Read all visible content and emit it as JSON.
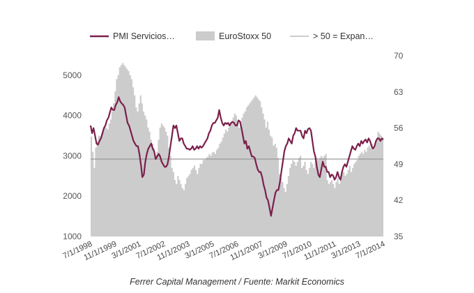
{
  "chart_data": {
    "type": "line",
    "title": "",
    "caption": "Ferrer Capital Management / Fuente: Markit Economics",
    "legend_position": "top",
    "legend": [
      {
        "name": "PMI Servicios…",
        "kind": "line",
        "color": "#7a1f4a"
      },
      {
        "name": "EuroStoxx 50",
        "kind": "area",
        "color": "#cccccc"
      },
      {
        "name": "> 50 = Expan…",
        "kind": "line",
        "color": "#bbbbbb"
      }
    ],
    "x_start": "7/1/1998",
    "x_end": "7/1/2014",
    "x_tick_labels": [
      "7/1/1998",
      "11/1/1999",
      "3/1/2001",
      "7/1/2002",
      "11/1/2003",
      "3/1/2005",
      "7/1/2006",
      "11/1/2007",
      "3/1/2009",
      "7/1/2010",
      "11/1/2011",
      "3/1/2013",
      "7/1/2014"
    ],
    "y_left": {
      "label": "",
      "min": 1000,
      "max": 5400,
      "ticks": [
        1000,
        2000,
        3000,
        4000,
        5000
      ]
    },
    "y_right": {
      "label": "",
      "min": 35,
      "max": 70,
      "ticks": [
        35,
        42,
        49,
        56,
        63,
        70
      ]
    },
    "grid": false,
    "reference_line": {
      "name": "> 50 = Expan…",
      "axis": "right",
      "value": 50
    },
    "series": [
      {
        "name": "EuroStoxx 50",
        "type": "area",
        "axis": "left",
        "color": "#cccccc",
        "frequency": "monthly",
        "values": [
          3480,
          3100,
          2700,
          3200,
          3350,
          3500,
          3480,
          3550,
          3600,
          3750,
          3700,
          3650,
          3800,
          3900,
          4100,
          4300,
          4600,
          4904,
          5000,
          5200,
          5250,
          5300,
          5250,
          5200,
          5150,
          5100,
          5000,
          4900,
          4700,
          4500,
          4200,
          4100,
          4300,
          4500,
          4300,
          4100,
          4000,
          3900,
          3700,
          3600,
          3400,
          3300,
          3200,
          3000,
          3100,
          3400,
          3700,
          3800,
          3750,
          3700,
          3600,
          3500,
          3200,
          3000,
          2700,
          2600,
          2400,
          2300,
          2500,
          2400,
          2300,
          2200,
          2150,
          2300,
          2450,
          2500,
          2550,
          2650,
          2700,
          2760,
          2650,
          2550,
          2700,
          2800,
          2800,
          2900,
          2900,
          2950,
          2980,
          3050,
          3000,
          3080,
          3100,
          3050,
          3150,
          3200,
          3300,
          3350,
          3450,
          3550,
          3650,
          3600,
          3700,
          3800,
          3850,
          3950,
          4050,
          4000,
          3800,
          3700,
          3850,
          3950,
          4050,
          4100,
          4200,
          4250,
          4300,
          4350,
          4400,
          4450,
          4500,
          4450,
          4400,
          4350,
          4200,
          4050,
          3900,
          3700,
          3850,
          3650,
          3500,
          3450,
          3250,
          3300,
          3200,
          2950,
          2550,
          2450,
          2350,
          2200,
          2100,
          2300,
          2500,
          2700,
          2800,
          2900,
          2850,
          2750,
          2850,
          2950,
          3000,
          2700,
          2750,
          2850,
          2650,
          2550,
          2700,
          2850,
          2800,
          2700,
          2850,
          2950,
          2900,
          2950,
          3000,
          2950,
          3000,
          3050,
          2400,
          2300,
          2350,
          2400,
          2300,
          2200,
          2350,
          2450,
          2300,
          2500,
          2650,
          2600,
          2500,
          2550,
          2650,
          2750,
          2600,
          2700,
          2800,
          2850,
          2900,
          3000,
          3050,
          3100,
          3050,
          3150,
          3100,
          3200,
          3250,
          3200,
          3300,
          3150,
          3300,
          3400,
          3600,
          3550,
          3500,
          3450
        ]
      },
      {
        "name": "PMI Servicios…",
        "type": "line",
        "axis": "right",
        "color": "#7a1f4a",
        "frequency": "monthly",
        "values": [
          56.5,
          55.0,
          56.0,
          54.5,
          53.0,
          52.8,
          53.5,
          54.0,
          55.0,
          56.0,
          56.5,
          57.5,
          58.0,
          59.0,
          60.0,
          59.5,
          59.5,
          60.5,
          61.0,
          62.0,
          61.2,
          60.8,
          60.5,
          60.0,
          58.5,
          57.0,
          56.5,
          55.5,
          54.5,
          53.5,
          53.0,
          52.5,
          52.5,
          51.0,
          49.0,
          46.5,
          47.0,
          49.5,
          51.0,
          52.0,
          52.5,
          53.0,
          52.0,
          51.5,
          50.0,
          50.5,
          51.0,
          50.5,
          49.5,
          49.0,
          48.5,
          48.5,
          49.0,
          50.5,
          52.5,
          54.5,
          56.5,
          56.0,
          56.5,
          55.0,
          53.5,
          54.0,
          54.0,
          53.0,
          52.5,
          52.0,
          52.0,
          51.8,
          52.0,
          52.5,
          51.8,
          52.0,
          52.5,
          52.0,
          52.5,
          52.2,
          52.5,
          53.0,
          53.5,
          54.0,
          55.0,
          55.5,
          56.5,
          57.0,
          57.0,
          57.5,
          58.0,
          59.5,
          58.0,
          57.0,
          56.5,
          57.0,
          56.8,
          57.0,
          56.5,
          57.0,
          57.2,
          57.0,
          56.5,
          56.5,
          57.5,
          57.3,
          56.0,
          54.5,
          53.0,
          53.5,
          52.0,
          52.5,
          51.5,
          50.5,
          50.5,
          50.2,
          49.0,
          48.0,
          47.5,
          47.5,
          46.5,
          45.0,
          44.0,
          42.5,
          42.0,
          40.5,
          39.0,
          40.5,
          42.0,
          43.5,
          44.0,
          44.0,
          45.5,
          47.5,
          49.5,
          51.5,
          52.5,
          53.0,
          54.0,
          53.5,
          53.0,
          54.5,
          55.0,
          56.0,
          55.5,
          55.5,
          55.5,
          54.5,
          54.0,
          55.5,
          55.0,
          55.8,
          56.0,
          55.5,
          53.5,
          51.5,
          50.5,
          48.5,
          47.0,
          46.5,
          48.0,
          49.5,
          48.5,
          48.5,
          47.5,
          47.5,
          46.5,
          47.0,
          46.8,
          46.0,
          46.5,
          47.5,
          46.5,
          46.0,
          47.5,
          48.5,
          49.0,
          48.5,
          49.5,
          50.5,
          51.5,
          52.5,
          52.0,
          51.8,
          52.5,
          53.0,
          52.5,
          53.5,
          53.0,
          53.5,
          53.8,
          53.2,
          54.0,
          53.5,
          52.5,
          52.0,
          52.5,
          53.5,
          54.0,
          54.0,
          53.5,
          54.0,
          53.8
        ]
      }
    ]
  }
}
